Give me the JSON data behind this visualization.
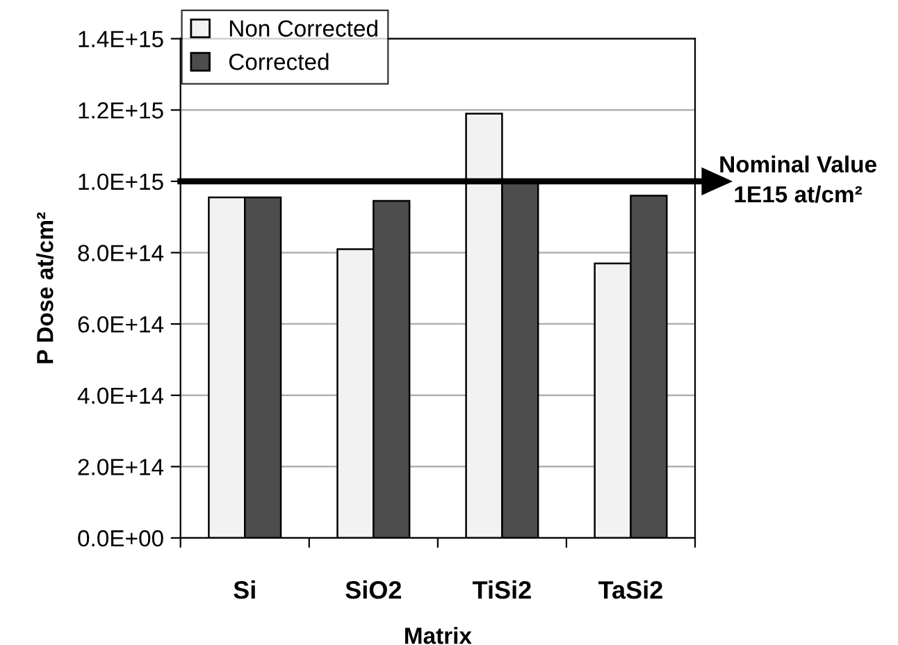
{
  "chart_data": {
    "type": "bar",
    "xlabel": "Matrix",
    "ylabel": "P Dose at/cm²",
    "categories": [
      "Si",
      "SiO2",
      "TiSi2",
      "TaSi2"
    ],
    "series": [
      {
        "name": "Non Corrected",
        "color": "#f2f2f2",
        "values": [
          955000000000000.0,
          810000000000000.0,
          1190000000000000.0,
          770000000000000.0
        ]
      },
      {
        "name": "Corrected",
        "color": "#4d4d4d",
        "values": [
          955000000000000.0,
          945000000000000.0,
          1000000000000000.0,
          960000000000000.0
        ]
      }
    ],
    "ylim": [
      0,
      1400000000000000.0
    ],
    "yticks": [
      {
        "value": 0,
        "label": "0.0E+00"
      },
      {
        "value": 200000000000000.0,
        "label": "2.0E+14"
      },
      {
        "value": 400000000000000.0,
        "label": "4.0E+14"
      },
      {
        "value": 600000000000000.0,
        "label": "6.0E+14"
      },
      {
        "value": 800000000000000.0,
        "label": "8.0E+14"
      },
      {
        "value": 1000000000000000.0,
        "label": "1.0E+15"
      },
      {
        "value": 1200000000000000.0,
        "label": "1.2E+15"
      },
      {
        "value": 1400000000000000.0,
        "label": "1.4E+15"
      }
    ],
    "ref_lines": [
      {
        "axis": "y",
        "value": 1000000000000000.0,
        "label": "Nominal Value\n1E15 at/cm²",
        "color": "#000000"
      }
    ],
    "grid": "y",
    "legend": "top left"
  }
}
